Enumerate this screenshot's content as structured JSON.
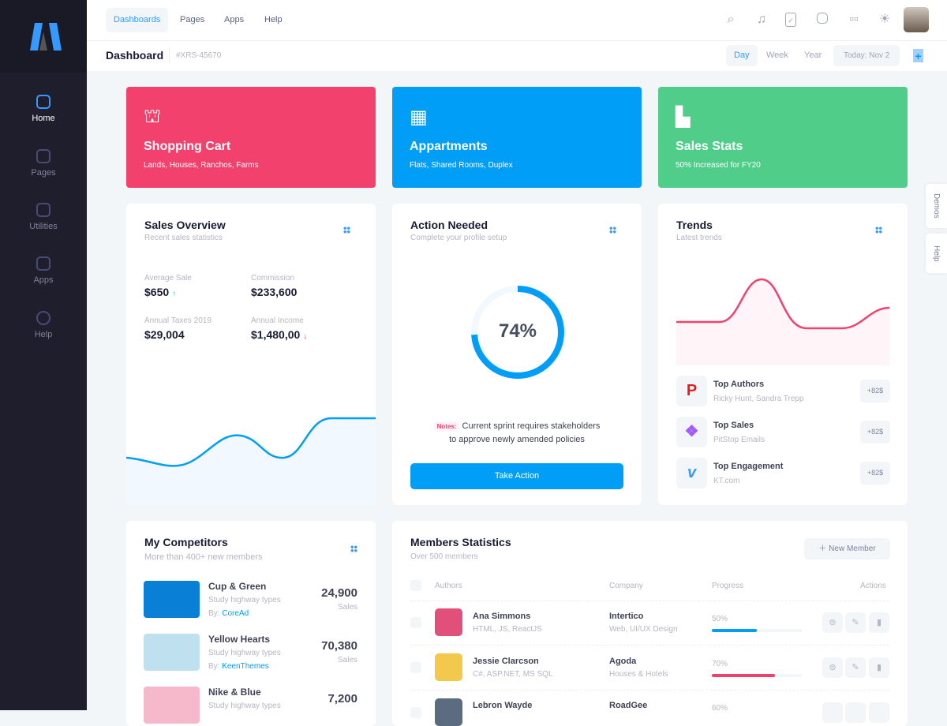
{
  "sidebar": {
    "items": [
      {
        "label": "Home",
        "active": true
      },
      {
        "label": "Pages"
      },
      {
        "label": "Utilities"
      },
      {
        "label": "Apps"
      },
      {
        "label": "Help"
      }
    ]
  },
  "topnav": {
    "items": [
      "Dashboards",
      "Pages",
      "Apps",
      "Help"
    ],
    "active": "Dashboards",
    "icons": [
      "search-icon",
      "bell-icon",
      "clipboard-icon",
      "chat-icon",
      "grid-icon",
      "sun-icon"
    ]
  },
  "subheader": {
    "title": "Dashboard",
    "id": "#XRS-45670",
    "periods": [
      "Day",
      "Week",
      "Year"
    ],
    "active_period": "Day",
    "today": "Today:  Nov 2"
  },
  "stats": [
    {
      "title": "Shopping Cart",
      "sub": "Lands, Houses, Ranchos, Farms",
      "color": "#f1416c",
      "icon": "basket-icon"
    },
    {
      "title": "Appartments",
      "sub": "Flats, Shared Rooms, Duplex",
      "color": "#009ef7",
      "icon": "building-icon"
    },
    {
      "title": "Sales Stats",
      "sub": "50% Increased for FY20",
      "color": "#50cd89",
      "icon": "bar-chart-icon"
    }
  ],
  "sales": {
    "title": "Sales Overview",
    "sub": "Recent sales statistics",
    "metrics": [
      {
        "label": "Average Sale",
        "value": "$650",
        "trend": "up"
      },
      {
        "label": "Commission",
        "value": "$233,600"
      },
      {
        "label": "Annual Taxes 2019",
        "value": "$29,004"
      },
      {
        "label": "Annual Income",
        "value": "$1,480,00",
        "trend": "down"
      }
    ]
  },
  "action": {
    "title": "Action Needed",
    "sub": "Complete your profile setup",
    "progress": 74,
    "progress_label": "74%",
    "notes_label": "Notes:",
    "note_line1": "Current sprint requires stakeholders",
    "note_line2": "to approve newly amended policies",
    "button": "Take Action"
  },
  "trends": {
    "title": "Trends",
    "sub": "Latest trends",
    "items": [
      {
        "title": "Top Authors",
        "sub": "Ricky Hunt, Sandra Trepp",
        "badge": "+82$",
        "icon": "pinterest-like-icon"
      },
      {
        "title": "Top Sales",
        "sub": "PitStop Emails",
        "badge": "+82$",
        "icon": "figma-icon"
      },
      {
        "title": "Top Engagement",
        "sub": "KT.com",
        "badge": "+82$",
        "icon": "vimeo-icon"
      }
    ]
  },
  "competitors": {
    "title": "My Competitors",
    "sub": "More than 400+ new members",
    "items": [
      {
        "name": "Cup & Green",
        "desc": "Study highway types",
        "by": "By:",
        "author": "CoreAd",
        "value": "24,900",
        "unit": "Sales"
      },
      {
        "name": "Yellow Hearts",
        "desc": "Study highway types",
        "by": "By:",
        "author": "KeenThemes",
        "value": "70,380",
        "unit": "Sales"
      },
      {
        "name": "Nike & Blue",
        "desc": "Study highway types",
        "value": "7,200"
      }
    ]
  },
  "members": {
    "title": "Members Statistics",
    "sub": "Over 500 members",
    "new_button": "New Member",
    "columns": [
      "Authors",
      "Company",
      "Progress",
      "Actions"
    ],
    "rows": [
      {
        "name": "Ana Simmons",
        "skills": "HTML, JS, ReactJS",
        "company": "Intertico",
        "company_sub": "Web, UI/UX Design",
        "progress": 50,
        "progress_label": "50%",
        "color": "#009ef7"
      },
      {
        "name": "Jessie Clarcson",
        "skills": "C#, ASP.NET, MS SQL",
        "company": "Agoda",
        "company_sub": "Houses & Hotels",
        "progress": 70,
        "progress_label": "70%",
        "color": "#f1416c"
      },
      {
        "name": "Lebron Wayde",
        "company": "RoadGee",
        "progress_label": "60%"
      }
    ]
  },
  "side_tabs": [
    "Demos",
    "Help"
  ]
}
